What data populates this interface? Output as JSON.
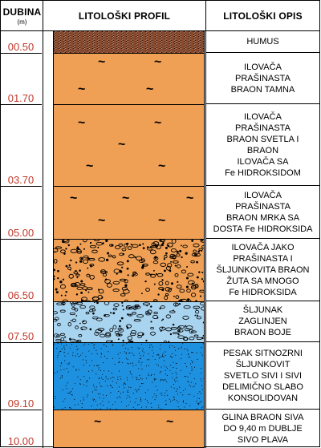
{
  "headers": {
    "depth_title": "DUBINA",
    "depth_unit": "(m)",
    "profile_title": "LITOLOŠKI PROFIL",
    "description_title": "LITOLOŠKI OPIS"
  },
  "colors": {
    "depth_text": "#c0392b",
    "humus": "#8b4a2e",
    "ilovaca": "#f0a055",
    "sljunak": "#a8d4f0",
    "pesak": "#1e90e0",
    "glina": "#f0a055"
  },
  "depths": [
    "00.50",
    "01.70",
    "03.70",
    "05.00",
    "06.50",
    "07.50",
    "09.10",
    "10.00"
  ],
  "layers": [
    {
      "pattern": "humus",
      "description": "HUMUS"
    },
    {
      "pattern": "ilovaca",
      "description": "ILOVAČA\nPRAŠINASTA\nBRAON TAMNA"
    },
    {
      "pattern": "ilovaca",
      "description": "ILOVAČA\nPRAŠINASTA\nBRAON SVETLA I\nBRAON\nILOVAČA SA\nFe HIDROKSIDOM"
    },
    {
      "pattern": "ilovaca",
      "description": "ILOVAČA\nPRAŠINASTA\nBRAON  MRKA SA\nDOSTA Fe HIDROKSIDA"
    },
    {
      "pattern": "ilovaca-gravel",
      "description": "ILOVAČA JAKO\nPRAŠINASTA I\nŠLJUNKOVITA BRAON\nŽUTA SA MNOGO\nFe HIDROKSIDA"
    },
    {
      "pattern": "sljunak",
      "description": "ŠLJUNAK\nZAGLINJEN\nBRAON BOJE"
    },
    {
      "pattern": "pesak",
      "description": "PESAK SITNOZRNI\nŠLJUNKOVIT\nSVETLO SIVI I SIVI\nDELIMIČNO SLABO\nKONSOLIDOVAN"
    },
    {
      "pattern": "glina",
      "description": "GLINA BRAON SIVA\nDO 9,40 m  DUBLJE\nSIVO PLAVA"
    }
  ]
}
